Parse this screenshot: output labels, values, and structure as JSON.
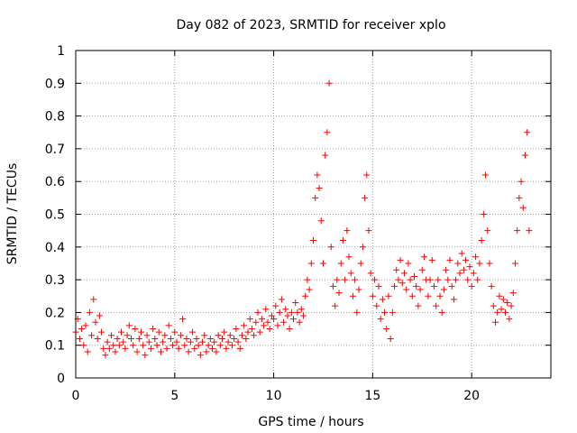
{
  "chart_data": {
    "type": "scatter",
    "title": "Day 082 of 2023, SRMTID for receiver xplo",
    "xlabel": "GPS time / hours",
    "ylabel": "SRMTID / TECUs",
    "xlim": [
      0,
      24
    ],
    "ylim": [
      0,
      1
    ],
    "x_ticks": [
      0,
      5,
      10,
      15,
      20
    ],
    "x_tick_labels": [
      "0",
      "5",
      "10",
      "15",
      "20"
    ],
    "y_ticks": [
      0,
      0.1,
      0.2,
      0.3,
      0.4,
      0.5,
      0.6,
      0.7,
      0.8,
      0.9,
      1
    ],
    "y_tick_labels": [
      "0",
      "0.1",
      "0.2",
      "0.3",
      "0.4",
      "0.5",
      "0.6",
      "0.7",
      "0.8",
      "0.9",
      "1"
    ],
    "grid": true,
    "marker": "+",
    "marker_color": "#ff0000",
    "series": [
      {
        "name": "SRMTID",
        "points": [
          [
            0.0,
            0.14
          ],
          [
            0.1,
            0.18
          ],
          [
            0.2,
            0.12
          ],
          [
            0.3,
            0.15
          ],
          [
            0.4,
            0.1
          ],
          [
            0.5,
            0.16
          ],
          [
            0.6,
            0.08
          ],
          [
            0.7,
            0.2
          ],
          [
            0.8,
            0.13
          ],
          [
            0.9,
            0.24
          ],
          [
            1.0,
            0.17
          ],
          [
            1.1,
            0.12
          ],
          [
            1.2,
            0.19
          ],
          [
            1.3,
            0.14
          ],
          [
            1.4,
            0.09
          ],
          [
            1.5,
            0.07
          ],
          [
            1.6,
            0.11
          ],
          [
            1.7,
            0.09
          ],
          [
            1.8,
            0.13
          ],
          [
            1.9,
            0.1
          ],
          [
            2.0,
            0.08
          ],
          [
            2.1,
            0.12
          ],
          [
            2.2,
            0.1
          ],
          [
            2.3,
            0.14
          ],
          [
            2.4,
            0.11
          ],
          [
            2.5,
            0.09
          ],
          [
            2.6,
            0.13
          ],
          [
            2.7,
            0.16
          ],
          [
            2.8,
            0.12
          ],
          [
            2.9,
            0.1
          ],
          [
            3.0,
            0.15
          ],
          [
            3.1,
            0.08
          ],
          [
            3.2,
            0.12
          ],
          [
            3.3,
            0.14
          ],
          [
            3.4,
            0.1
          ],
          [
            3.5,
            0.07
          ],
          [
            3.6,
            0.13
          ],
          [
            3.7,
            0.11
          ],
          [
            3.8,
            0.09
          ],
          [
            3.9,
            0.15
          ],
          [
            4.0,
            0.12
          ],
          [
            4.1,
            0.1
          ],
          [
            4.2,
            0.14
          ],
          [
            4.3,
            0.08
          ],
          [
            4.4,
            0.11
          ],
          [
            4.5,
            0.13
          ],
          [
            4.6,
            0.09
          ],
          [
            4.7,
            0.16
          ],
          [
            4.8,
            0.12
          ],
          [
            4.9,
            0.1
          ],
          [
            5.0,
            0.14
          ],
          [
            5.1,
            0.11
          ],
          [
            5.2,
            0.09
          ],
          [
            5.3,
            0.13
          ],
          [
            5.4,
            0.18
          ],
          [
            5.5,
            0.1
          ],
          [
            5.6,
            0.12
          ],
          [
            5.7,
            0.08
          ],
          [
            5.8,
            0.11
          ],
          [
            5.9,
            0.14
          ],
          [
            6.0,
            0.09
          ],
          [
            6.1,
            0.12
          ],
          [
            6.2,
            0.1
          ],
          [
            6.3,
            0.07
          ],
          [
            6.4,
            0.11
          ],
          [
            6.5,
            0.13
          ],
          [
            6.6,
            0.08
          ],
          [
            6.7,
            0.1
          ],
          [
            6.8,
            0.12
          ],
          [
            6.9,
            0.09
          ],
          [
            7.0,
            0.11
          ],
          [
            7.1,
            0.08
          ],
          [
            7.2,
            0.13
          ],
          [
            7.3,
            0.1
          ],
          [
            7.4,
            0.12
          ],
          [
            7.5,
            0.14
          ],
          [
            7.6,
            0.09
          ],
          [
            7.7,
            0.11
          ],
          [
            7.8,
            0.13
          ],
          [
            7.9,
            0.1
          ],
          [
            8.0,
            0.12
          ],
          [
            8.1,
            0.15
          ],
          [
            8.2,
            0.11
          ],
          [
            8.3,
            0.09
          ],
          [
            8.4,
            0.13
          ],
          [
            8.5,
            0.16
          ],
          [
            8.6,
            0.12
          ],
          [
            8.7,
            0.14
          ],
          [
            8.8,
            0.18
          ],
          [
            8.9,
            0.15
          ],
          [
            9.0,
            0.13
          ],
          [
            9.1,
            0.17
          ],
          [
            9.2,
            0.2
          ],
          [
            9.3,
            0.14
          ],
          [
            9.4,
            0.18
          ],
          [
            9.5,
            0.16
          ],
          [
            9.6,
            0.21
          ],
          [
            9.7,
            0.17
          ],
          [
            9.8,
            0.15
          ],
          [
            9.9,
            0.19
          ],
          [
            10.0,
            0.18
          ],
          [
            10.1,
            0.22
          ],
          [
            10.2,
            0.16
          ],
          [
            10.3,
            0.2
          ],
          [
            10.4,
            0.24
          ],
          [
            10.5,
            0.17
          ],
          [
            10.6,
            0.21
          ],
          [
            10.7,
            0.19
          ],
          [
            10.8,
            0.15
          ],
          [
            10.9,
            0.2
          ],
          [
            11.0,
            0.18
          ],
          [
            11.1,
            0.23
          ],
          [
            11.2,
            0.2
          ],
          [
            11.3,
            0.17
          ],
          [
            11.4,
            0.21
          ],
          [
            11.5,
            0.19
          ],
          [
            11.6,
            0.25
          ],
          [
            11.7,
            0.3
          ],
          [
            11.8,
            0.27
          ],
          [
            11.9,
            0.35
          ],
          [
            12.0,
            0.42
          ],
          [
            12.1,
            0.55
          ],
          [
            12.2,
            0.62
          ],
          [
            12.3,
            0.58
          ],
          [
            12.4,
            0.48
          ],
          [
            12.5,
            0.35
          ],
          [
            12.6,
            0.68
          ],
          [
            12.7,
            0.75
          ],
          [
            12.8,
            0.9
          ],
          [
            12.9,
            0.4
          ],
          [
            13.0,
            0.28
          ],
          [
            13.1,
            0.22
          ],
          [
            13.2,
            0.3
          ],
          [
            13.3,
            0.26
          ],
          [
            13.4,
            0.35
          ],
          [
            13.5,
            0.42
          ],
          [
            13.6,
            0.3
          ],
          [
            13.7,
            0.45
          ],
          [
            13.8,
            0.37
          ],
          [
            13.9,
            0.32
          ],
          [
            14.0,
            0.25
          ],
          [
            14.1,
            0.3
          ],
          [
            14.2,
            0.2
          ],
          [
            14.3,
            0.27
          ],
          [
            14.4,
            0.35
          ],
          [
            14.5,
            0.4
          ],
          [
            14.6,
            0.55
          ],
          [
            14.7,
            0.62
          ],
          [
            14.8,
            0.45
          ],
          [
            14.9,
            0.32
          ],
          [
            15.0,
            0.25
          ],
          [
            15.1,
            0.3
          ],
          [
            15.2,
            0.22
          ],
          [
            15.3,
            0.28
          ],
          [
            15.4,
            0.18
          ],
          [
            15.5,
            0.24
          ],
          [
            15.6,
            0.2
          ],
          [
            15.7,
            0.15
          ],
          [
            15.8,
            0.25
          ],
          [
            15.9,
            0.12
          ],
          [
            16.0,
            0.2
          ],
          [
            16.1,
            0.28
          ],
          [
            16.2,
            0.33
          ],
          [
            16.3,
            0.3
          ],
          [
            16.4,
            0.36
          ],
          [
            16.5,
            0.29
          ],
          [
            16.6,
            0.32
          ],
          [
            16.7,
            0.27
          ],
          [
            16.8,
            0.35
          ],
          [
            16.9,
            0.3
          ],
          [
            17.0,
            0.25
          ],
          [
            17.1,
            0.31
          ],
          [
            17.2,
            0.28
          ],
          [
            17.3,
            0.22
          ],
          [
            17.4,
            0.27
          ],
          [
            17.5,
            0.33
          ],
          [
            17.6,
            0.37
          ],
          [
            17.7,
            0.3
          ],
          [
            17.8,
            0.25
          ],
          [
            17.9,
            0.3
          ],
          [
            18.0,
            0.36
          ],
          [
            18.1,
            0.28
          ],
          [
            18.2,
            0.22
          ],
          [
            18.3,
            0.3
          ],
          [
            18.4,
            0.25
          ],
          [
            18.5,
            0.2
          ],
          [
            18.6,
            0.27
          ],
          [
            18.7,
            0.33
          ],
          [
            18.8,
            0.3
          ],
          [
            18.9,
            0.36
          ],
          [
            19.0,
            0.28
          ],
          [
            19.1,
            0.24
          ],
          [
            19.2,
            0.3
          ],
          [
            19.3,
            0.35
          ],
          [
            19.4,
            0.32
          ],
          [
            19.5,
            0.38
          ],
          [
            19.6,
            0.33
          ],
          [
            19.7,
            0.36
          ],
          [
            19.8,
            0.3
          ],
          [
            19.9,
            0.34
          ],
          [
            20.0,
            0.28
          ],
          [
            20.1,
            0.32
          ],
          [
            20.2,
            0.37
          ],
          [
            20.3,
            0.3
          ],
          [
            20.4,
            0.35
          ],
          [
            20.5,
            0.42
          ],
          [
            20.6,
            0.5
          ],
          [
            20.7,
            0.62
          ],
          [
            20.8,
            0.45
          ],
          [
            20.9,
            0.35
          ],
          [
            21.0,
            0.28
          ],
          [
            21.1,
            0.22
          ],
          [
            21.2,
            0.17
          ],
          [
            21.3,
            0.2
          ],
          [
            21.4,
            0.25
          ],
          [
            21.5,
            0.21
          ],
          [
            21.6,
            0.24
          ],
          [
            21.7,
            0.2
          ],
          [
            21.8,
            0.23
          ],
          [
            21.9,
            0.18
          ],
          [
            22.0,
            0.22
          ],
          [
            22.1,
            0.26
          ],
          [
            22.2,
            0.35
          ],
          [
            22.3,
            0.45
          ],
          [
            22.4,
            0.55
          ],
          [
            22.5,
            0.6
          ],
          [
            22.6,
            0.52
          ],
          [
            22.7,
            0.68
          ],
          [
            22.8,
            0.75
          ],
          [
            22.9,
            0.45
          ]
        ]
      }
    ]
  }
}
